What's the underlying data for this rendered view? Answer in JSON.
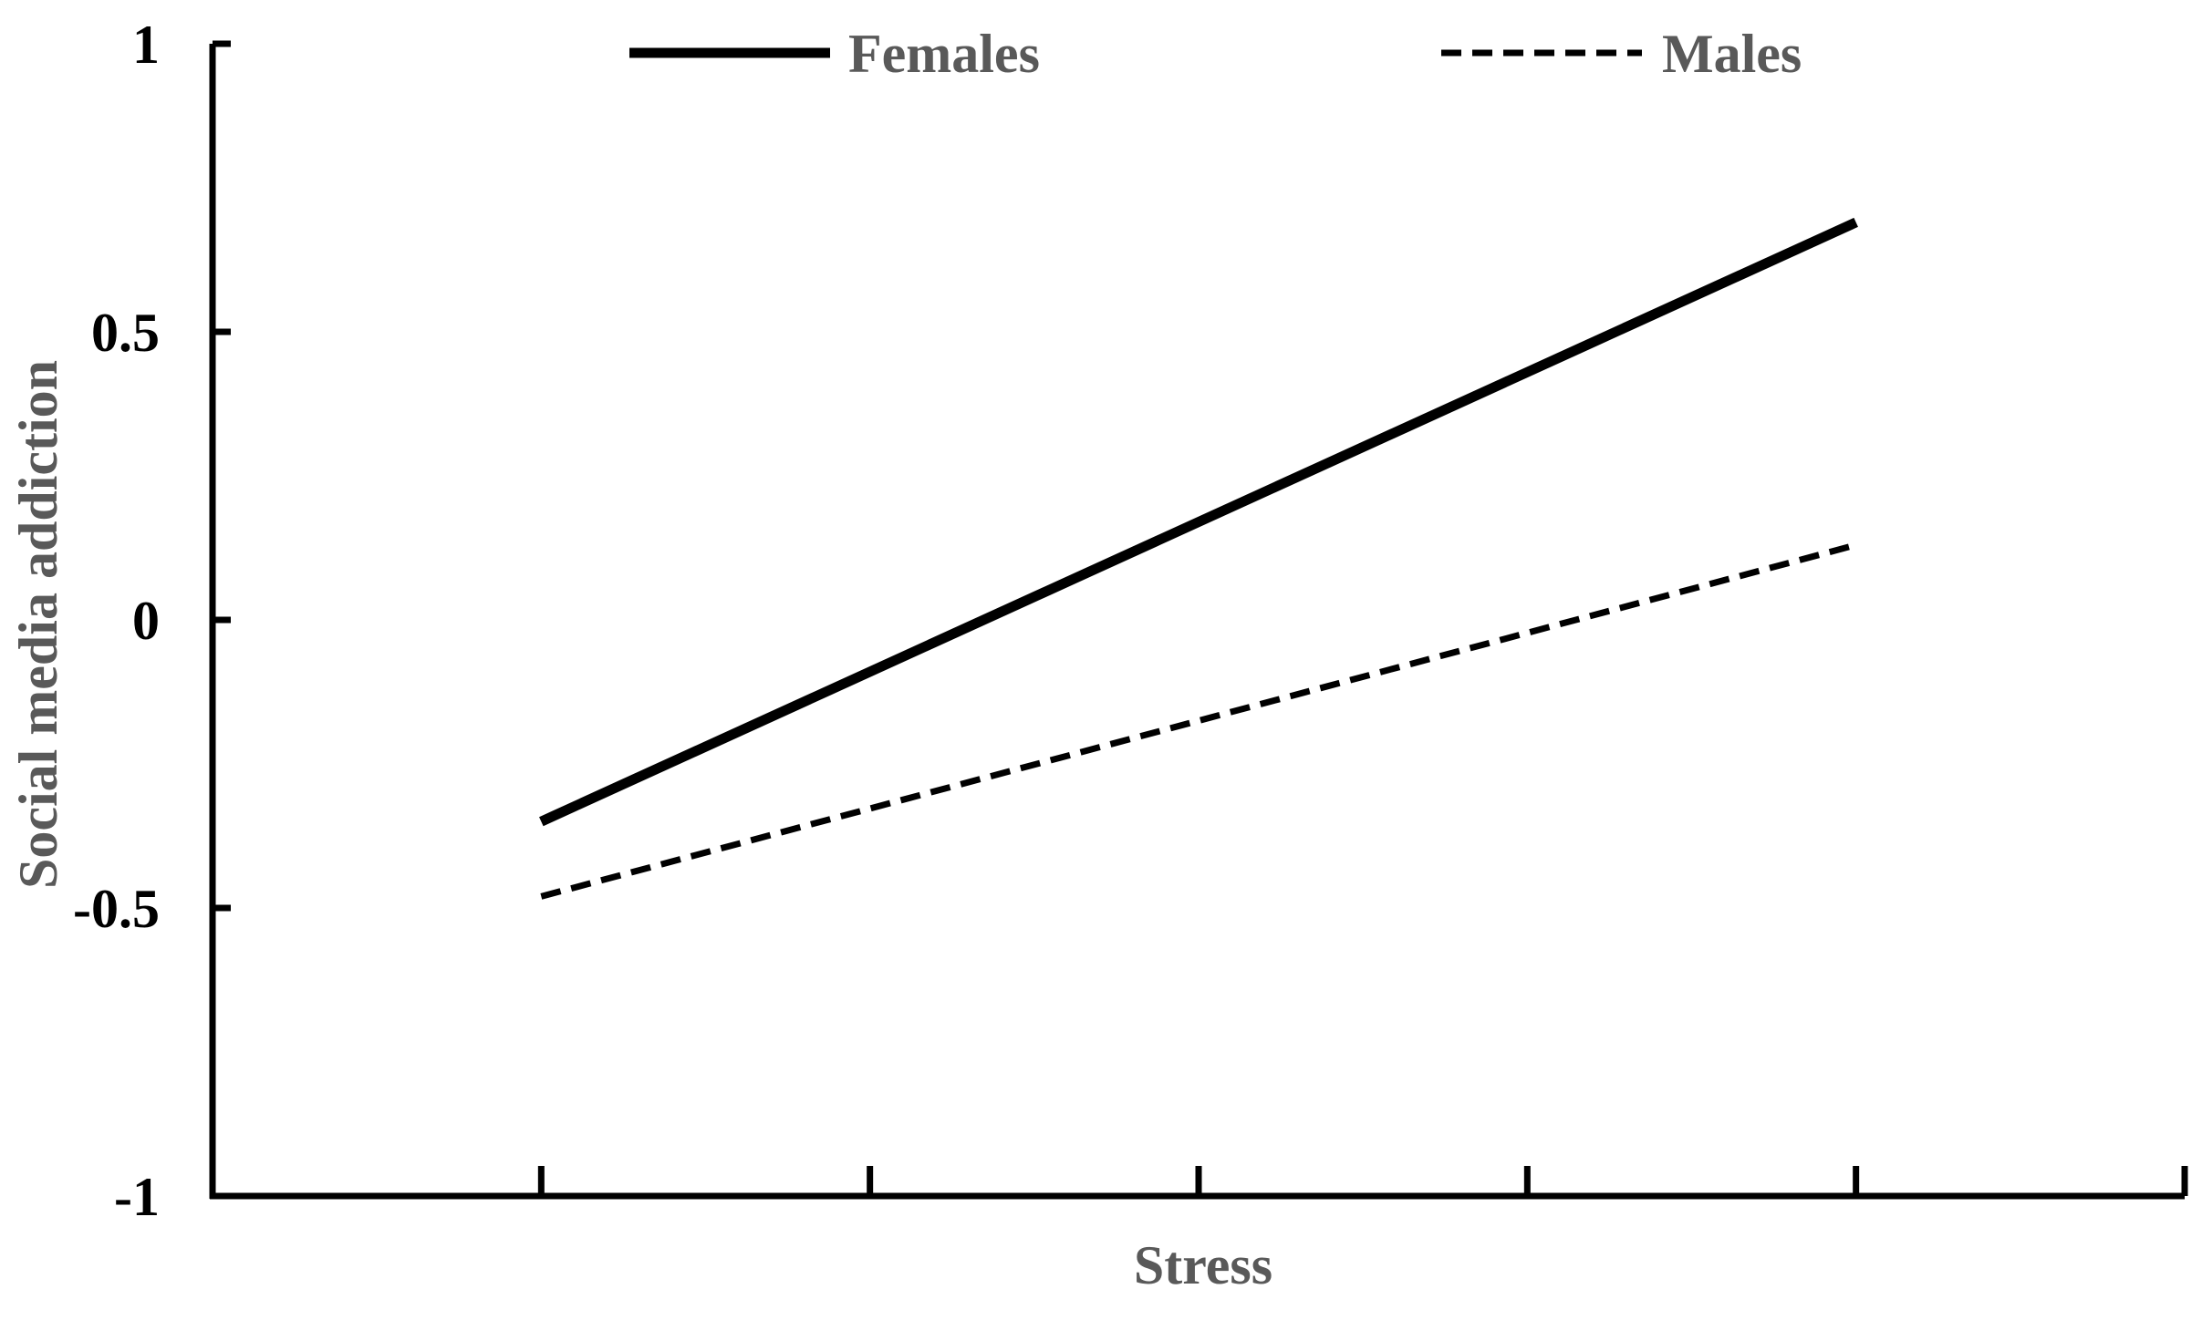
{
  "chart_data": {
    "type": "line",
    "title": "",
    "xlabel": "Stress",
    "ylabel": "Social media addiction",
    "ylim": [
      -1,
      1
    ],
    "yticks": [
      "1",
      "0.5",
      "0",
      "-0.5",
      "-1"
    ],
    "ytick_values": [
      1,
      0.5,
      0,
      -0.5,
      -1
    ],
    "xlim": [
      0,
      6
    ],
    "xtick_positions": [
      1,
      2,
      3,
      4,
      5,
      6
    ],
    "x": [
      1,
      5
    ],
    "grid": false,
    "legend_position": "top",
    "series": [
      {
        "name": "Females",
        "values": [
          -0.35,
          0.69
        ],
        "style": "solid",
        "color": "#000000"
      },
      {
        "name": "Males",
        "values": [
          -0.48,
          0.13
        ],
        "style": "dashed",
        "color": "#000000"
      }
    ]
  }
}
